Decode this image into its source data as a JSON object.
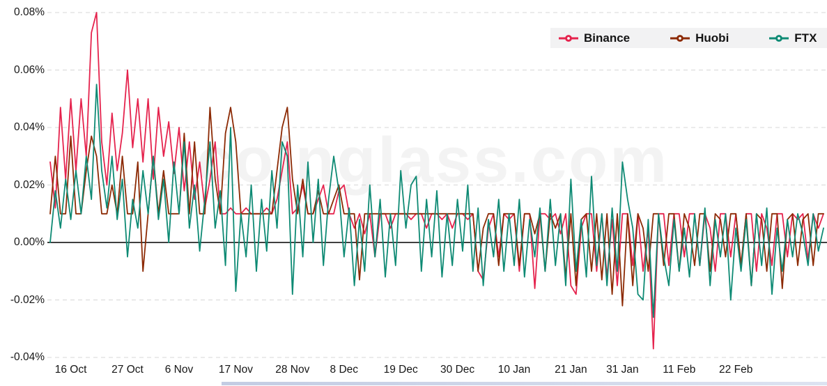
{
  "watermark": {
    "text": "coinglass.com"
  },
  "chart_data": {
    "type": "line",
    "title": "",
    "xlabel": "",
    "ylabel": "",
    "unit": "%",
    "grid": "dashed-horizontal",
    "legend_position": "top-right",
    "zero_line_color": "#000000",
    "grid_color": "#d7d7d7",
    "ylim": [
      -0.04,
      0.08
    ],
    "y_ticks": [
      {
        "value": 0.08,
        "label": "0.08%"
      },
      {
        "value": 0.06,
        "label": "0.06%"
      },
      {
        "value": 0.04,
        "label": "0.04%"
      },
      {
        "value": 0.02,
        "label": "0.02%"
      },
      {
        "value": 0.0,
        "label": "0.00%"
      },
      {
        "value": -0.02,
        "label": "-0.02%"
      },
      {
        "value": -0.04,
        "label": "-0.04%"
      }
    ],
    "x_ticks": [
      {
        "day": 0,
        "label": "16 Oct"
      },
      {
        "day": 11,
        "label": "27 Oct"
      },
      {
        "day": 21,
        "label": "6 Nov"
      },
      {
        "day": 32,
        "label": "17 Nov"
      },
      {
        "day": 43,
        "label": "28 Nov"
      },
      {
        "day": 53,
        "label": "8 Dec"
      },
      {
        "day": 64,
        "label": "19 Dec"
      },
      {
        "day": 75,
        "label": "30 Dec"
      },
      {
        "day": 86,
        "label": "10 Jan"
      },
      {
        "day": 97,
        "label": "21 Jan"
      },
      {
        "day": 107,
        "label": "31 Jan"
      },
      {
        "day": 118,
        "label": "11 Feb"
      },
      {
        "day": 129,
        "label": "22 Feb"
      }
    ],
    "x_start_day": -4,
    "x_step_days": 1,
    "series": [
      {
        "name": "Binance",
        "color": "#e5234d",
        "values": [
          0.028,
          0.012,
          0.047,
          0.022,
          0.05,
          0.025,
          0.05,
          0.03,
          0.073,
          0.08,
          0.035,
          0.02,
          0.045,
          0.025,
          0.038,
          0.06,
          0.033,
          0.05,
          0.028,
          0.05,
          0.022,
          0.047,
          0.03,
          0.042,
          0.024,
          0.04,
          0.018,
          0.035,
          0.015,
          0.028,
          0.012,
          0.022,
          0.035,
          0.01,
          0.01,
          0.012,
          0.01,
          0.01,
          0.012,
          0.01,
          0.01,
          0.01,
          0.012,
          0.01,
          0.015,
          0.025,
          0.035,
          0.01,
          0.012,
          0.02,
          0.01,
          0.01,
          0.015,
          0.02,
          0.01,
          0.01,
          0.018,
          0.02,
          0.01,
          0.005,
          0.01,
          0.003,
          0.01,
          -0.005,
          0.01,
          0.01,
          0.005,
          0.01,
          0.01,
          0.01,
          0.008,
          0.01,
          0.01,
          0.005,
          0.01,
          0.01,
          0.008,
          0.01,
          0.005,
          0.01,
          0.01,
          0.008,
          0.01,
          -0.01,
          -0.013,
          0.005,
          0.01,
          -0.005,
          0.01,
          0.008,
          0.01,
          -0.01,
          0.01,
          0.01,
          -0.016,
          0.01,
          0.01,
          0.008,
          0.01,
          0.003,
          0.01,
          -0.015,
          -0.018,
          0.005,
          0.01,
          0.01,
          -0.01,
          0.01,
          -0.012,
          0.008,
          -0.015,
          0.01,
          0.01,
          -0.008,
          0.01,
          -0.01,
          0.005,
          -0.037,
          0.01,
          0.01,
          -0.008,
          0.01,
          0.01,
          -0.005,
          0.01,
          0.01,
          -0.008,
          0.01,
          0.005,
          -0.01,
          0.01,
          0.01,
          -0.005,
          0.01,
          -0.008,
          0.01,
          0.01,
          -0.01,
          0.01,
          0.005,
          -0.008,
          0.01,
          0.01,
          -0.005,
          0.01,
          0.008,
          0.01,
          -0.006,
          0.01,
          0.005,
          0.01
        ]
      },
      {
        "name": "Huobi",
        "color": "#8c2a04",
        "values": [
          0.01,
          0.03,
          0.01,
          0.01,
          0.037,
          0.01,
          0.01,
          0.025,
          0.037,
          0.03,
          0.01,
          0.01,
          0.02,
          0.01,
          0.03,
          0.01,
          0.01,
          0.028,
          -0.01,
          0.01,
          0.03,
          0.01,
          0.025,
          0.01,
          0.01,
          0.01,
          0.038,
          0.01,
          0.035,
          0.01,
          0.01,
          0.047,
          0.022,
          0.01,
          0.038,
          0.047,
          0.035,
          0.01,
          0.01,
          0.01,
          0.01,
          0.01,
          0.01,
          0.01,
          0.025,
          0.04,
          0.047,
          0.022,
          0.01,
          0.022,
          0.01,
          0.01,
          0.018,
          0.01,
          0.01,
          0.015,
          0.02,
          0.01,
          0.01,
          0.01,
          -0.013,
          0.01,
          0.01,
          0.01,
          0.01,
          0.01,
          0.01,
          0.01,
          0.01,
          0.01,
          0.01,
          0.01,
          0.01,
          0.01,
          0.01,
          0.01,
          0.01,
          0.01,
          0.01,
          0.01,
          0.01,
          0.01,
          0.01,
          -0.01,
          0.005,
          0.01,
          0.01,
          -0.008,
          0.01,
          0.01,
          0.01,
          -0.008,
          0.01,
          0.01,
          0.003,
          0.01,
          -0.01,
          0.01,
          0.005,
          0.01,
          -0.012,
          0.01,
          -0.015,
          0.008,
          0.01,
          -0.01,
          0.01,
          -0.013,
          0.01,
          -0.018,
          0.01,
          -0.022,
          0.01,
          -0.015,
          0.01,
          0.005,
          -0.01,
          0.01,
          0.01,
          -0.008,
          0.01,
          0.01,
          -0.01,
          0.01,
          0.005,
          -0.008,
          0.01,
          0.01,
          -0.01,
          0.01,
          0.008,
          -0.005,
          0.01,
          0.01,
          -0.008,
          0.01,
          -0.015,
          0.01,
          0.008,
          -0.01,
          0.01,
          0.01,
          -0.016,
          0.008,
          0.01,
          -0.008,
          0.008,
          0.01,
          -0.008,
          0.01,
          0.01
        ]
      },
      {
        "name": "FTX",
        "color": "#0e8a74",
        "values": [
          0.0,
          0.018,
          0.005,
          0.022,
          0.008,
          0.025,
          0.01,
          0.03,
          0.015,
          0.055,
          0.025,
          0.012,
          0.03,
          0.008,
          0.022,
          -0.005,
          0.015,
          0.005,
          0.025,
          0.01,
          0.03,
          0.008,
          0.022,
          0.0,
          0.028,
          0.01,
          0.035,
          0.005,
          0.02,
          -0.003,
          0.015,
          0.035,
          0.005,
          0.018,
          -0.008,
          0.04,
          -0.017,
          0.01,
          -0.005,
          0.02,
          -0.01,
          0.015,
          -0.003,
          0.025,
          0.005,
          0.035,
          0.03,
          -0.018,
          0.02,
          -0.005,
          0.028,
          0.0,
          0.022,
          -0.008,
          0.015,
          0.03,
          0.018,
          -0.005,
          0.012,
          -0.015,
          0.008,
          -0.01,
          0.02,
          -0.005,
          0.015,
          -0.012,
          0.01,
          -0.008,
          0.025,
          0.005,
          0.02,
          0.023,
          -0.01,
          0.015,
          -0.005,
          0.018,
          -0.012,
          0.01,
          -0.008,
          0.015,
          -0.003,
          0.02,
          -0.01,
          0.012,
          -0.015,
          0.008,
          -0.005,
          0.015,
          -0.01,
          0.01,
          -0.008,
          0.015,
          -0.012,
          0.008,
          -0.005,
          0.012,
          -0.01,
          0.015,
          -0.008,
          0.01,
          -0.015,
          0.022,
          -0.01,
          0.008,
          -0.012,
          0.023,
          -0.008,
          0.01,
          -0.015,
          0.012,
          -0.01,
          0.028,
          0.015,
          0.005,
          -0.018,
          -0.02,
          0.008,
          -0.026,
          0.01,
          -0.005,
          -0.015,
          0.008,
          -0.01,
          0.005,
          -0.012,
          0.01,
          -0.008,
          0.012,
          -0.015,
          0.008,
          -0.005,
          0.01,
          -0.02,
          0.005,
          -0.01,
          0.008,
          -0.015,
          0.01,
          -0.008,
          0.012,
          -0.018,
          0.005,
          -0.01,
          0.008,
          -0.005,
          0.01,
          0.003,
          -0.008,
          0.01,
          -0.003,
          0.005
        ]
      }
    ]
  }
}
